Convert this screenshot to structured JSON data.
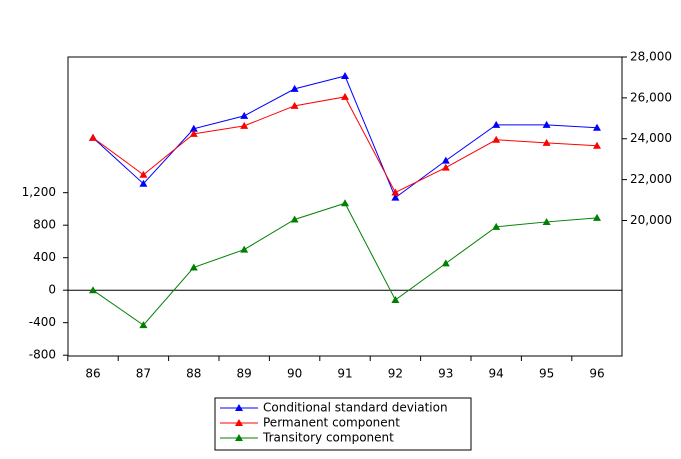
{
  "chart_data": {
    "type": "line",
    "categories": [
      "86",
      "87",
      "88",
      "89",
      "90",
      "91",
      "92",
      "93",
      "94",
      "95",
      "96"
    ],
    "series": [
      {
        "name": "Conditional standard deviation",
        "color": "#0000ff",
        "axis": "y2",
        "values": [
          24050,
          21800,
          24490,
          25120,
          26440,
          27070,
          21120,
          22930,
          24680,
          24680,
          24540
        ]
      },
      {
        "name": "Permanent component",
        "color": "#ff0000",
        "axis": "y2",
        "values": [
          24050,
          22240,
          24240,
          24630,
          25610,
          26050,
          21370,
          22590,
          23950,
          23800,
          23660
        ]
      },
      {
        "name": "Transitory component",
        "color": "#008000",
        "values": [
          0,
          -430,
          280,
          500,
          870,
          1070,
          -120,
          330,
          780,
          840,
          890
        ]
      }
    ],
    "ylim": [
      -810,
      2870
    ],
    "yticks": [
      -800,
      -400,
      0,
      400,
      800,
      {
        "value": 1200,
        "label": "1,200"
      }
    ],
    "y2lim": [
      13370,
      28000
    ],
    "y2ticks": [
      {
        "value": 20000,
        "label": "20,000"
      },
      {
        "value": 22000,
        "label": "22,000"
      },
      {
        "value": 24000,
        "label": "24,000"
      },
      {
        "value": 26000,
        "label": "26,000"
      },
      {
        "value": 28000,
        "label": "28,000"
      }
    ]
  }
}
